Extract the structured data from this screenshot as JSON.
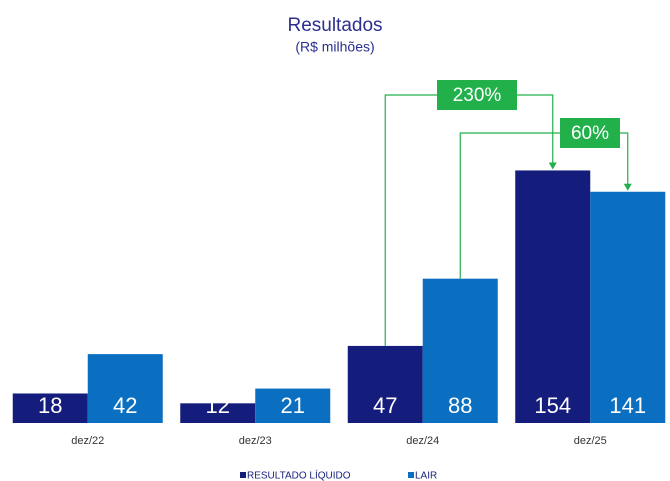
{
  "chart_data": {
    "type": "bar",
    "title": "Resultados",
    "subtitle": "(R$ milhões)",
    "categories": [
      "dez/22",
      "dez/23",
      "dez/24",
      "dez/25"
    ],
    "series": [
      {
        "name": "RESULTADO LÍQUIDO",
        "color": "#141c7c",
        "values": [
          18,
          12,
          47,
          154
        ]
      },
      {
        "name": "LAIR",
        "color": "#0b6fc1",
        "values": [
          42,
          21,
          88,
          141
        ]
      }
    ],
    "annotations": [
      {
        "text": "230%",
        "color": "#22b04b"
      },
      {
        "text": "60%",
        "color": "#22b04b"
      }
    ],
    "legend": "bottom"
  }
}
